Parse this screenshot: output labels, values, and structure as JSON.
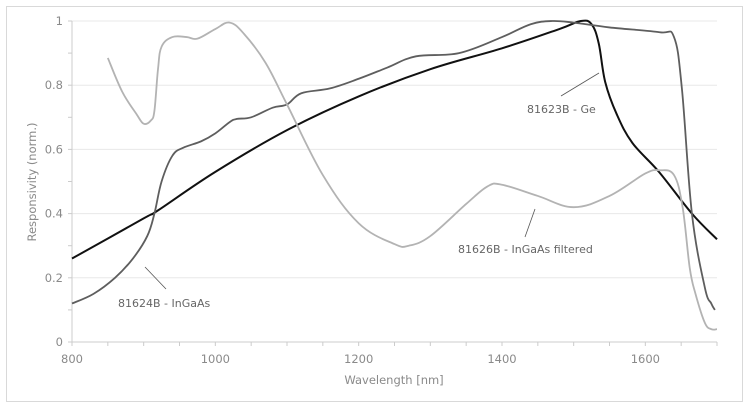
{
  "chart_data": {
    "type": "line",
    "xlabel": "Wavelength [nm]",
    "ylabel": "Responsivity (norm.)",
    "xlim": [
      800,
      1700
    ],
    "ylim": [
      0,
      1
    ],
    "x_ticks": [
      800,
      1000,
      1200,
      1400,
      1600
    ],
    "x_tick_labels": [
      "800",
      "1000",
      "1200",
      "1400",
      "1600"
    ],
    "y_ticks": [
      0,
      0.2,
      0.4,
      0.6,
      0.8,
      1
    ],
    "y_tick_labels": [
      "0",
      "0.2",
      "0.4",
      "0.6",
      "0.8",
      "1"
    ],
    "grid": true,
    "legend": "none (inline annotations)",
    "series": [
      {
        "name": "81623B - Ge",
        "color": "#111111",
        "x": [
          800,
          900,
          920,
          1000,
          1100,
          1200,
          1300,
          1400,
          1480,
          1510,
          1525,
          1535,
          1544,
          1560,
          1582,
          1619,
          1665,
          1700
        ],
        "y": [
          0.26,
          0.385,
          0.41,
          0.53,
          0.66,
          0.765,
          0.85,
          0.915,
          0.975,
          1.0,
          0.99,
          0.93,
          0.81,
          0.71,
          0.62,
          0.53,
          0.4,
          0.32
        ]
      },
      {
        "name": "81624B - InGaAs",
        "color": "#5e5e5e",
        "x": [
          800,
          830,
          860,
          885,
          905,
          915,
          925,
          940,
          955,
          980,
          1000,
          1020,
          1030,
          1050,
          1080,
          1100,
          1120,
          1160,
          1200,
          1240,
          1280,
          1340,
          1400,
          1440,
          1470,
          1500,
          1550,
          1620,
          1640,
          1651,
          1665,
          1683,
          1692,
          1697
        ],
        "y": [
          0.12,
          0.15,
          0.2,
          0.26,
          0.33,
          0.4,
          0.5,
          0.58,
          0.605,
          0.625,
          0.65,
          0.685,
          0.695,
          0.7,
          0.73,
          0.74,
          0.775,
          0.79,
          0.82,
          0.855,
          0.89,
          0.9,
          0.95,
          0.99,
          1.0,
          0.995,
          0.98,
          0.965,
          0.95,
          0.79,
          0.4,
          0.17,
          0.12,
          0.1
        ]
      },
      {
        "name": "81626B - InGaAs filtered",
        "color": "#b3b3b3",
        "x": [
          850,
          870,
          890,
          900,
          910,
          915,
          920,
          925,
          940,
          960,
          975,
          1000,
          1020,
          1040,
          1070,
          1100,
          1150,
          1200,
          1250,
          1270,
          1300,
          1350,
          1380,
          1400,
          1450,
          1500,
          1550,
          1600,
          1620,
          1640,
          1652,
          1662,
          1670,
          1683,
          1692,
          1700
        ],
        "y": [
          0.885,
          0.78,
          0.71,
          0.68,
          0.69,
          0.72,
          0.85,
          0.92,
          0.95,
          0.95,
          0.945,
          0.975,
          0.995,
          0.96,
          0.87,
          0.74,
          0.52,
          0.37,
          0.305,
          0.3,
          0.33,
          0.43,
          0.485,
          0.49,
          0.455,
          0.42,
          0.455,
          0.525,
          0.535,
          0.52,
          0.42,
          0.23,
          0.15,
          0.06,
          0.04,
          0.04
        ]
      }
    ],
    "annotations": [
      {
        "text": "81623B - Ge",
        "series": "81623B - Ge"
      },
      {
        "text": "81624B - InGaAs",
        "series": "81624B - InGaAs"
      },
      {
        "text": "81626B - InGaAs filtered",
        "series": "81626B - InGaAs filtered"
      }
    ]
  }
}
